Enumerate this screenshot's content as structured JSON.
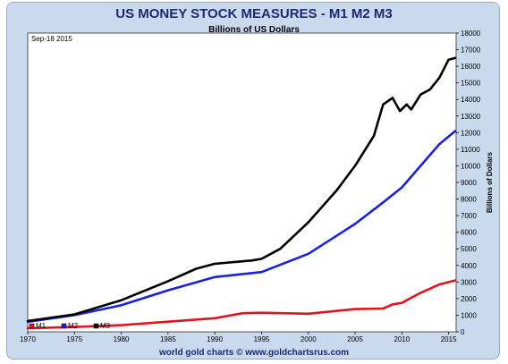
{
  "chart_data": {
    "type": "line",
    "title": "US MONEY STOCK MEASURES - M1 M2 M3",
    "subtitle": "Billions of US Dollars",
    "date_label": "Sep-18  2015",
    "ylabel": "Billions of Dollars",
    "footer": "world gold charts © www.goldchartsrus.com",
    "xlim": [
      1970,
      2015.8
    ],
    "ylim": [
      0,
      18000
    ],
    "x_ticks": [
      1970,
      1975,
      1980,
      1985,
      1990,
      1995,
      2000,
      2005,
      2010,
      2015
    ],
    "y_ticks": [
      0,
      1000,
      2000,
      3000,
      4000,
      5000,
      6000,
      7000,
      8000,
      9000,
      10000,
      11000,
      12000,
      13000,
      14000,
      15000,
      16000,
      17000,
      18000
    ],
    "grid": false,
    "legend_position": "bottom-left",
    "series": [
      {
        "name": "M1",
        "color": "#e0141e",
        "x": [
          1970,
          1975,
          1980,
          1985,
          1990,
          1993,
          1995,
          2000,
          2005,
          2008,
          2009,
          2010,
          2011,
          2012,
          2013,
          2014,
          2015.7
        ],
        "values": [
          210,
          290,
          400,
          610,
          820,
          1120,
          1150,
          1090,
          1370,
          1400,
          1650,
          1740,
          2050,
          2350,
          2600,
          2850,
          3100
        ]
      },
      {
        "name": "M2",
        "color": "#1a22d8",
        "x": [
          1970,
          1975,
          1980,
          1985,
          1990,
          1995,
          2000,
          2005,
          2008,
          2010,
          2012,
          2014,
          2015.7
        ],
        "values": [
          600,
          1000,
          1600,
          2500,
          3300,
          3600,
          4700,
          6500,
          7800,
          8700,
          10000,
          11300,
          12100
        ]
      },
      {
        "name": "M3",
        "color": "#000000",
        "x": [
          1970,
          1975,
          1980,
          1985,
          1988,
          1990,
          1992,
          1994,
          1995,
          1997,
          2000,
          2003,
          2005,
          2007,
          2008,
          2009,
          2009.8,
          2010.5,
          2011,
          2012,
          2013,
          2014,
          2015,
          2015.7
        ],
        "values": [
          650,
          1050,
          1900,
          3050,
          3800,
          4100,
          4200,
          4300,
          4400,
          5000,
          6600,
          8500,
          10000,
          11800,
          13700,
          14100,
          13300,
          13700,
          13400,
          14300,
          14600,
          15300,
          16400,
          16500
        ]
      }
    ]
  }
}
